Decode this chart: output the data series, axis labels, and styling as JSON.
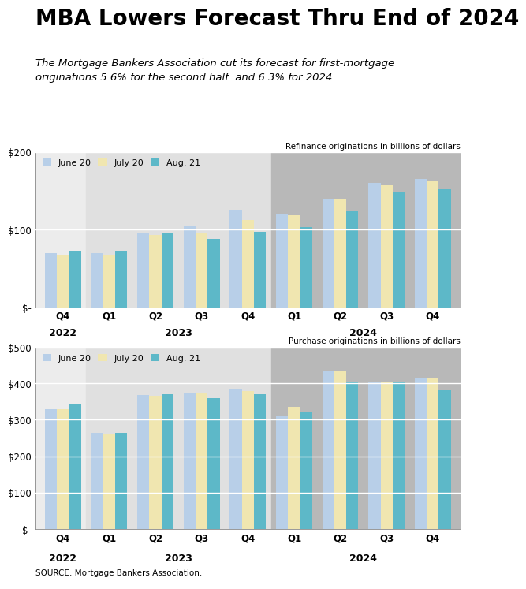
{
  "title": "MBA Lowers Forecast Thru End of 2024",
  "subtitle": "The Mortgage Bankers Association cut its forecast for first-mortgage\noriginations 5.6% for the second half  and 6.3% for 2024.",
  "source": "SOURCE: Mortgage Bankers Association.",
  "legend_labels": [
    "June 20",
    "July 20",
    "Aug. 21"
  ],
  "bar_colors": [
    "#b8cfe8",
    "#f0e6b0",
    "#5db8c8"
  ],
  "refi_title": "Refinance originations in billions of dollars",
  "refi_june": [
    70,
    70,
    95,
    105,
    125,
    120,
    140,
    160,
    165
  ],
  "refi_july": [
    68,
    68,
    93,
    95,
    112,
    118,
    140,
    157,
    162
  ],
  "refi_aug": [
    73,
    73,
    95,
    88,
    97,
    103,
    123,
    148,
    152
  ],
  "refi_ylim": [
    0,
    200
  ],
  "refi_yticks": [
    0,
    100,
    200
  ],
  "refi_ytick_labels": [
    "$-",
    "$100",
    "$200"
  ],
  "purch_title": "Purchase originations in billions of dollars",
  "purch_june": [
    330,
    265,
    368,
    372,
    385,
    312,
    432,
    402,
    415
  ],
  "purch_july": [
    328,
    263,
    365,
    372,
    378,
    335,
    432,
    405,
    415
  ],
  "purch_aug": [
    342,
    265,
    370,
    360,
    370,
    322,
    405,
    405,
    382
  ],
  "purch_ylim": [
    0,
    500
  ],
  "purch_yticks": [
    0,
    100,
    200,
    300,
    400,
    500
  ],
  "purch_ytick_labels": [
    "$-",
    "$100",
    "$200",
    "$300",
    "$400",
    "$500"
  ],
  "bg_2022": "#ececec",
  "bg_2023": "#e0e0e0",
  "bg_2024": "#b8b8b8",
  "quarter_labels": [
    "Q4",
    "Q1",
    "Q2",
    "Q3",
    "Q4",
    "Q1",
    "Q2",
    "Q3",
    "Q4"
  ],
  "year_labels": [
    {
      "x": 0,
      "label": "2022"
    },
    {
      "x": 2.5,
      "label": "2023"
    },
    {
      "x": 6.5,
      "label": "2024"
    }
  ],
  "band_breaks": [
    0.5,
    4.5
  ]
}
